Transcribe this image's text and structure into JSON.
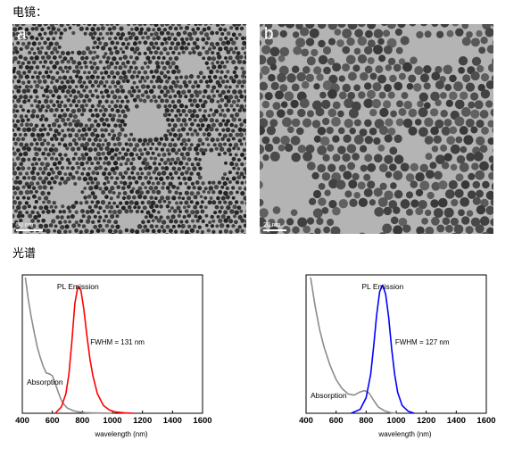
{
  "headings": {
    "tem": "电镜：",
    "spectra": "光谱"
  },
  "tem_panels": [
    {
      "letter": "a",
      "scale_label": "50 nm"
    },
    {
      "letter": "b",
      "scale_label": "20 nm"
    }
  ],
  "colors": {
    "absorption": "#8c8c8c",
    "pl_left": "#ff0000",
    "pl_right": "#0000ff"
  },
  "chart_data": [
    {
      "type": "line",
      "xlabel": "wavelength (nm)",
      "ylabel": "",
      "xlim": [
        400,
        1600
      ],
      "xticks": [
        400,
        600,
        800,
        1000,
        1200,
        1400,
        1600
      ],
      "xtick_labels": [
        "400",
        "600",
        "800",
        "1000",
        "1200",
        "1400",
        "1600"
      ],
      "grid": false,
      "annotations": {
        "pl": "PL Emission",
        "fwhm": "FWHM = 131 nm",
        "abs": "Absorption"
      },
      "series": [
        {
          "name": "Absorption",
          "color": "#8c8c8c",
          "x": [
            420,
            440,
            460,
            480,
            500,
            520,
            540,
            560,
            580,
            600,
            620,
            640,
            660,
            680,
            700,
            740,
            780,
            820,
            860,
            900,
            960,
            1000
          ],
          "y": [
            1.05,
            0.88,
            0.74,
            0.62,
            0.51,
            0.43,
            0.36,
            0.31,
            0.305,
            0.29,
            0.23,
            0.16,
            0.1,
            0.065,
            0.04,
            0.02,
            0.01,
            0.005,
            0.003,
            0.002,
            0.001,
            0.0
          ]
        },
        {
          "name": "PL Emission",
          "color": "#ff0000",
          "x": [
            620,
            660,
            690,
            710,
            730,
            750,
            770,
            790,
            810,
            830,
            850,
            870,
            900,
            940,
            980,
            1020,
            1080,
            1140
          ],
          "y": [
            0.0,
            0.05,
            0.15,
            0.3,
            0.56,
            0.85,
            0.98,
            0.95,
            0.8,
            0.6,
            0.42,
            0.29,
            0.15,
            0.06,
            0.025,
            0.01,
            0.003,
            0.0
          ]
        }
      ]
    },
    {
      "type": "line",
      "xlabel": "wavelength (nm)",
      "ylabel": "",
      "xlim": [
        400,
        1600
      ],
      "xticks": [
        400,
        600,
        800,
        1000,
        1200,
        1400,
        1600
      ],
      "xtick_labels": [
        "400",
        "600",
        "800",
        "1000",
        "1200",
        "1400",
        "1600"
      ],
      "grid": false,
      "annotations": {
        "pl": "PL Emission",
        "fwhm": "FWHM = 127 nm",
        "abs": "Absorption"
      },
      "series": [
        {
          "name": "Absorption",
          "color": "#8c8c8c",
          "x": [
            430,
            460,
            490,
            520,
            560,
            600,
            640,
            680,
            720,
            760,
            790,
            820,
            850,
            880,
            920,
            960,
            1000
          ],
          "y": [
            1.05,
            0.83,
            0.65,
            0.51,
            0.37,
            0.26,
            0.19,
            0.15,
            0.14,
            0.165,
            0.175,
            0.155,
            0.1,
            0.05,
            0.02,
            0.005,
            0.0
          ]
        },
        {
          "name": "PL Emission",
          "color": "#0000ff",
          "x": [
            700,
            760,
            800,
            830,
            850,
            870,
            890,
            910,
            930,
            950,
            970,
            990,
            1010,
            1040,
            1080,
            1120
          ],
          "y": [
            0.0,
            0.03,
            0.12,
            0.3,
            0.52,
            0.76,
            0.94,
            0.99,
            0.92,
            0.74,
            0.5,
            0.3,
            0.16,
            0.06,
            0.015,
            0.0
          ]
        }
      ]
    }
  ]
}
